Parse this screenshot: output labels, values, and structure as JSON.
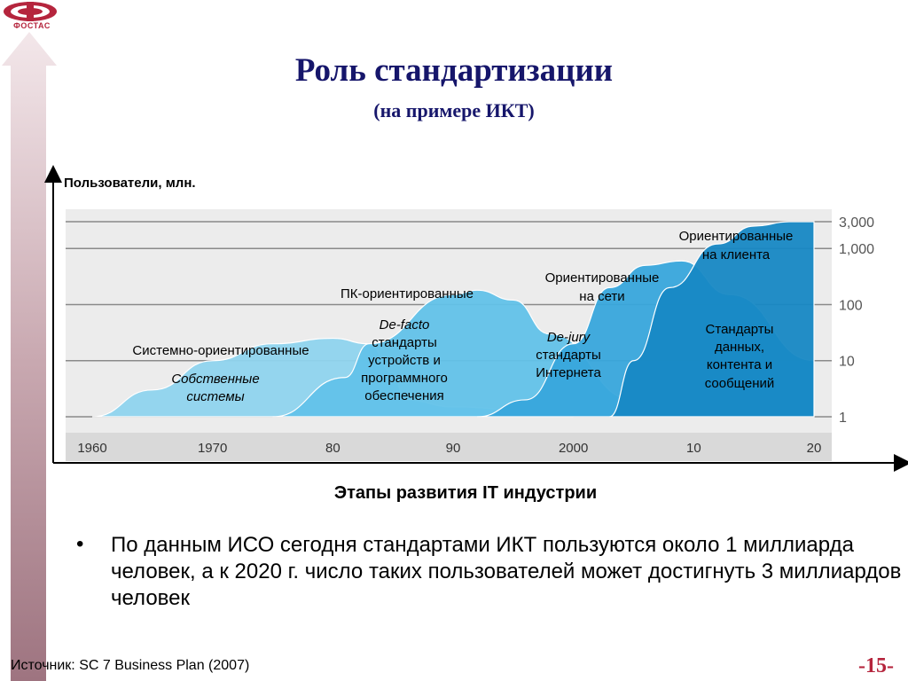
{
  "header": {
    "logo_text": "ФОСТАС",
    "title": "Роль стандартизации",
    "subtitle": "(на примере ИКТ)"
  },
  "chart_data": {
    "type": "area",
    "ylabel": "Пользователи, млн.",
    "xlabel": "Этапы развития IT индустрии",
    "x_ticks": [
      "1960",
      "1970",
      "80",
      "90",
      "2000",
      "10",
      "20"
    ],
    "x_range": [
      1960,
      2020
    ],
    "y_scale": "log",
    "y_ticks": [
      "1",
      "10",
      "100",
      "1,000",
      "3,000"
    ],
    "y_range": [
      1,
      3000
    ],
    "grid": true,
    "series": [
      {
        "name": "Системно-ориентированные",
        "color": "#8fd4ee",
        "x": [
          1960,
          1965,
          1970,
          1975,
          1980,
          1983,
          1985,
          1986,
          1990,
          2000
        ],
        "y": [
          1,
          3,
          10,
          20,
          25,
          20,
          6,
          2,
          1.5,
          1
        ]
      },
      {
        "name": "ПК-ориентированные",
        "color": "#62c2e9",
        "x": [
          1975,
          1981,
          1983,
          1990,
          1992,
          1995,
          1998,
          2005,
          2020
        ],
        "y": [
          1,
          5,
          20,
          150,
          180,
          120,
          30,
          2,
          1
        ]
      },
      {
        "name": "Ориентированные на сети",
        "color": "#38a7dc",
        "x": [
          1992,
          1996,
          2000,
          2003,
          2006,
          2009,
          2013,
          2020
        ],
        "y": [
          1,
          2,
          20,
          200,
          500,
          600,
          150,
          10
        ]
      },
      {
        "name": "Ориентированные на клиента",
        "color": "#1788c4",
        "x": [
          2003,
          2005,
          2008,
          2012,
          2015,
          2018,
          2020
        ],
        "y": [
          1,
          10,
          200,
          1200,
          2500,
          3000,
          3000
        ]
      }
    ],
    "annotations": [
      {
        "id": "label-system",
        "text": "Системно-ориентированные",
        "style": "normal"
      },
      {
        "id": "label-proprietary-1",
        "text": "Собственные",
        "style": "italic"
      },
      {
        "id": "label-proprietary-2",
        "text": "системы",
        "style": "italic"
      },
      {
        "id": "label-pc",
        "text": "ПК-ориентированные",
        "style": "normal"
      },
      {
        "id": "label-defacto-1",
        "text": "De-facto",
        "style": "italic"
      },
      {
        "id": "label-defacto-2",
        "text": "стандарты",
        "style": "normal"
      },
      {
        "id": "label-defacto-3",
        "text": "устройств и",
        "style": "normal"
      },
      {
        "id": "label-defacto-4",
        "text": "программного",
        "style": "normal"
      },
      {
        "id": "label-defacto-5",
        "text": "обеспечения",
        "style": "normal"
      },
      {
        "id": "label-network-1",
        "text": "Ориентированные",
        "style": "normal"
      },
      {
        "id": "label-network-2",
        "text": "на сети",
        "style": "normal"
      },
      {
        "id": "label-dejury-1",
        "text": "De-jury",
        "style": "italic"
      },
      {
        "id": "label-dejury-2",
        "text": "стандарты",
        "style": "normal"
      },
      {
        "id": "label-dejury-3",
        "text": "Интернета",
        "style": "normal"
      },
      {
        "id": "label-client-1",
        "text": "Ориентированные",
        "style": "normal"
      },
      {
        "id": "label-client-2",
        "text": "на клиента",
        "style": "normal"
      },
      {
        "id": "label-data-1",
        "text": "Стандарты",
        "style": "normal"
      },
      {
        "id": "label-data-2",
        "text": "данных,",
        "style": "normal"
      },
      {
        "id": "label-data-3",
        "text": "контента и",
        "style": "normal"
      },
      {
        "id": "label-data-4",
        "text": "сообщений",
        "style": "normal"
      }
    ]
  },
  "bullet": {
    "text": "По данным ИСО сегодня стандартами ИКТ пользуются около 1 миллиарда человек, а к 2020 г. число таких пользователей может достигнуть 3 миллиардов человек"
  },
  "footer": {
    "source": "Источник: SC 7 Business Plan (2007)",
    "page": "-15-"
  }
}
